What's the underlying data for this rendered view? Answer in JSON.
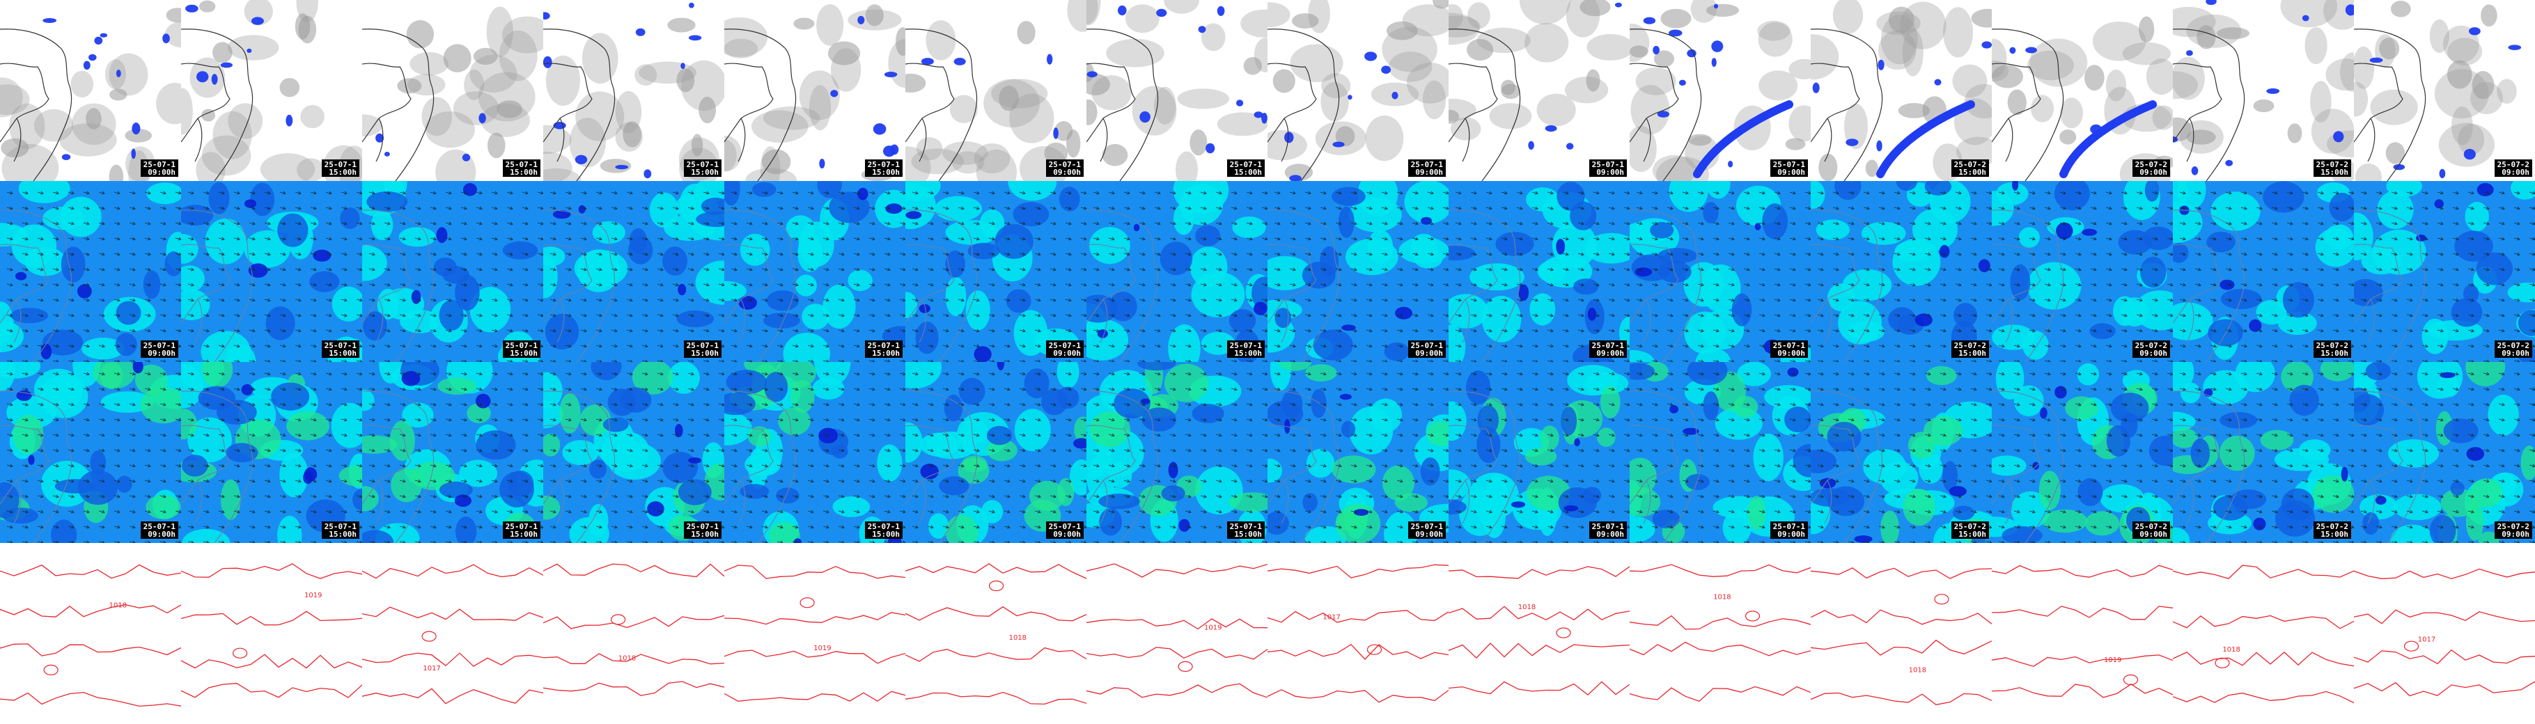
{
  "layout": {
    "rows": [
      "precipitation",
      "wind-a",
      "wind-b",
      "pressure"
    ]
  },
  "panels": [
    {
      "date": "25-07-1",
      "time": "09:00h"
    },
    {
      "date": "25-07-1",
      "time": "15:00h"
    },
    {
      "date": "25-07-1",
      "time": "15:00h"
    },
    {
      "date": "25-07-1",
      "time": "15:00h"
    },
    {
      "date": "25-07-1",
      "time": "15:00h"
    },
    {
      "date": "25-07-1",
      "time": "09:00h"
    },
    {
      "date": "25-07-1",
      "time": "15:00h"
    },
    {
      "date": "25-07-1",
      "time": "09:00h"
    },
    {
      "date": "25-07-1",
      "time": "09:00h"
    },
    {
      "date": "25-07-1",
      "time": "09:00h"
    },
    {
      "date": "25-07-2",
      "time": "15:00h"
    },
    {
      "date": "25-07-2",
      "time": "09:00h"
    },
    {
      "date": "25-07-2",
      "time": "15:00h"
    },
    {
      "date": "25-07-2",
      "time": "09:00h"
    }
  ],
  "pressure_labels": [
    "1018",
    "1019",
    "1017",
    "1018",
    "1019",
    "1018",
    "1019",
    "1017",
    "1018",
    "1018",
    "1018",
    "1019",
    "1018",
    "1017"
  ],
  "colors": {
    "cloud": "#9a9a9a",
    "precip": "#1f3cf0",
    "wind_base": "#1a8ef0",
    "wind_low": "#00e6f0",
    "wind_mid": "#1060e0",
    "wind_high": "#0a1ed0",
    "wind_green": "#20e890",
    "coast": "#333333",
    "isobar": "#e8242c"
  }
}
